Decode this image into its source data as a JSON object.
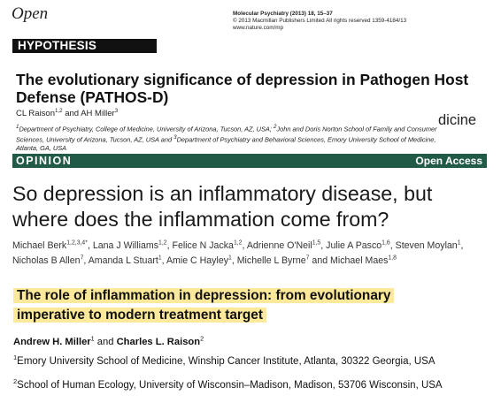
{
  "header": {
    "logo_text": "Open",
    "journal_line": "Molecular Psychiatry (2013) 18, 15–37",
    "copyright_line": "© 2013 Macmillan Publishers Limited  All rights reserved 1359-4184/13",
    "url_line": "www.nature.com/mp"
  },
  "paper1": {
    "badge": "HYPOTHESIS",
    "title": "The evolutionary significance of depression in Pathogen Host Defense (PATHOS-D)",
    "authors": {
      "a1": "CL Raison",
      "a1_sup": "1,2",
      "and": " and ",
      "a2": "AH Miller",
      "a2_sup": "3"
    },
    "affiliations": {
      "s1": "1",
      "t1": "Department of Psychiatry, College of Medicine, University of Arizona, Tucson, AZ, USA; ",
      "s2": "2",
      "t2": "John and Doris Norton School of Family and Consumer Sciences, University of Arizona, Tucson, AZ, USA and ",
      "s3": "3",
      "t3": "Department of Psychiatry and Behavioral Sciences, Emory University School of Medicine, Atlanta, GA, USA"
    },
    "behind_fragment": "dicine"
  },
  "paper2": {
    "section_label": "OPINION",
    "access_label": "Open Access",
    "title": "So depression is an inflammatory disease, but where does the inflammation come from?",
    "authors": [
      {
        "name": "Michael Berk",
        "sup": "1,2,3,4*"
      },
      {
        "name": "Lana J Williams",
        "sup": "1,2"
      },
      {
        "name": "Felice N Jacka",
        "sup": "1,2"
      },
      {
        "name": "Adrienne O'Neil",
        "sup": "1,5"
      },
      {
        "name": "Julie A Pasco",
        "sup": "1,6"
      },
      {
        "name": "Steven Moylan",
        "sup": "1"
      },
      {
        "name": "Nicholas B Allen",
        "sup": "7"
      },
      {
        "name": "Amanda L Stuart",
        "sup": "1"
      },
      {
        "name": "Amie C Hayley",
        "sup": "1"
      },
      {
        "name": "Michelle L Byrne",
        "sup": "7"
      },
      {
        "name": "Michael Maes",
        "sup": "1,8"
      }
    ],
    "and_word": " and "
  },
  "paper3": {
    "title": "The role of inflammation in depression: from evolutionary imperative to modern treatment target",
    "authors": {
      "a1": "Andrew H. Miller",
      "a1_sup": "1",
      "and": " and ",
      "a2": "Charles L. Raison",
      "a2_sup": "2"
    },
    "aff1_sup": "1",
    "aff1": "Emory University School of Medicine, Winship Cancer Institute, Atlanta, 30322 Georgia, USA",
    "aff2_sup": "2",
    "aff2": "School of Human Ecology, University of Wisconsin–Madison, Madison, 53706 Wisconsin, USA",
    "highlight_color": "#fde99a"
  },
  "colors": {
    "opinion_bar": "#215b48",
    "hypothesis_badge": "#111111"
  }
}
